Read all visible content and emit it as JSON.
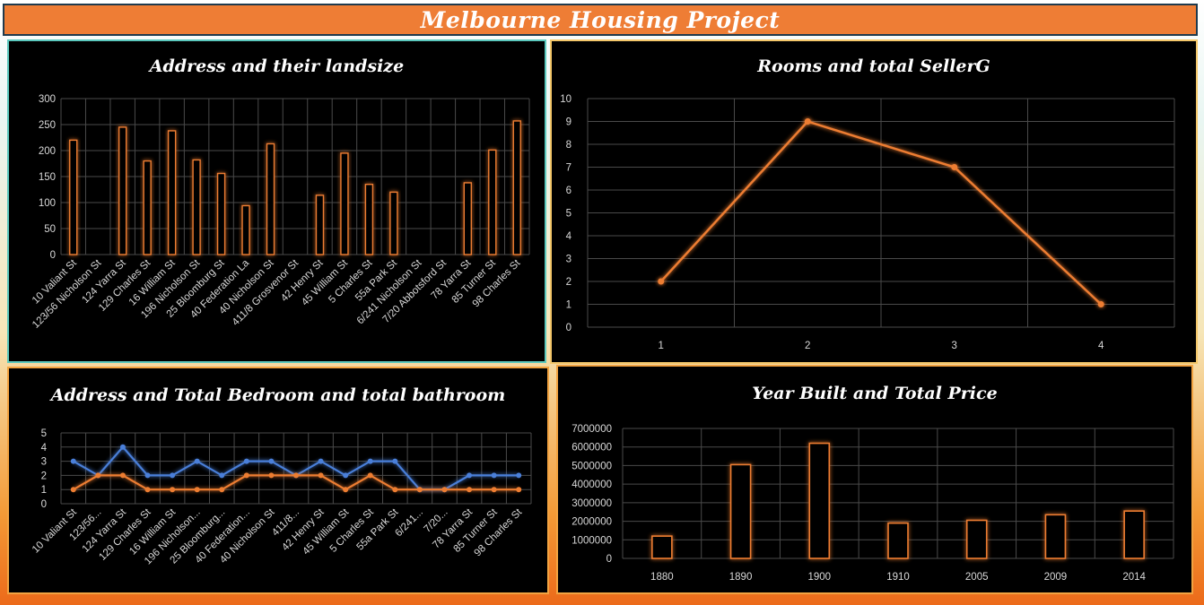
{
  "dashboard": {
    "title": "Melbourne Housing Project"
  },
  "chart_data": [
    {
      "id": "landsize",
      "type": "bar",
      "title": "Address and their landsize",
      "categories": [
        "10 Valiant St",
        "123/56 Nicholson St",
        "124 Yarra St",
        "129 Charles St",
        "16 William St",
        "196 Nicholson St",
        "25 Bloomburg St",
        "40 Federation La",
        "40 Nicholson St",
        "411/8 Grosvenor St",
        "42 Henry St",
        "45 William St",
        "5 Charles St",
        "55a Park St",
        "6/241 Nicholson St",
        "7/20 Abbotsford St",
        "78 Yarra St",
        "85 Turner St",
        "98 Charles St"
      ],
      "values": [
        220,
        0,
        245,
        180,
        238,
        182,
        156,
        94,
        213,
        0,
        114,
        195,
        135,
        120,
        0,
        0,
        138,
        201,
        257
      ],
      "ylim": [
        0,
        300
      ],
      "yticks": [
        0,
        50,
        100,
        150,
        200,
        250,
        300
      ],
      "grid": true,
      "color": "#ed7d31"
    },
    {
      "id": "rooms",
      "type": "line",
      "title": "Rooms and total SellerG",
      "x": [
        1,
        2,
        3,
        4
      ],
      "values": [
        2,
        9,
        7,
        1
      ],
      "ylim": [
        0,
        10
      ],
      "yticks": [
        0,
        1,
        2,
        3,
        4,
        5,
        6,
        7,
        8,
        9,
        10
      ],
      "grid": true,
      "color": "#ed7d31"
    },
    {
      "id": "bed_bath",
      "type": "line",
      "title": "Address and Total Bedroom and total bathroom",
      "categories": [
        "10 Valiant St",
        "123/56...",
        "124 Yarra St",
        "129 Charles St",
        "16 William St",
        "196 Nicholson...",
        "25 Bloomburg...",
        "40 Federation...",
        "40 Nicholson St",
        "411/8...",
        "42 Henry St",
        "45 William St",
        "5 Charles St",
        "55a Park St",
        "6/241...",
        "7/20...",
        "78 Yarra St",
        "85 Turner St",
        "98 Charles St"
      ],
      "series": [
        {
          "values": [
            3,
            2,
            4,
            2,
            2,
            3,
            2,
            3,
            3,
            2,
            3,
            2,
            3,
            3,
            1,
            1,
            2,
            2,
            2
          ],
          "color": "#4a7fd9"
        },
        {
          "values": [
            1,
            2,
            2,
            1,
            1,
            1,
            1,
            2,
            2,
            2,
            2,
            1,
            2,
            1,
            1,
            1,
            1,
            1,
            1
          ],
          "color": "#ed7d31"
        }
      ],
      "ylim": [
        0,
        5
      ],
      "yticks": [
        0,
        1,
        2,
        3,
        4,
        5
      ],
      "grid": true
    },
    {
      "id": "year_price",
      "type": "bar",
      "title": "Year Built and Total Price",
      "categories": [
        "1880",
        "1890",
        "1900",
        "1910",
        "2005",
        "2009",
        "2014"
      ],
      "values": [
        1200000,
        5050000,
        6200000,
        1900000,
        2050000,
        2350000,
        2550000
      ],
      "ylim": [
        0,
        7000000
      ],
      "yticks": [
        0,
        1000000,
        2000000,
        3000000,
        4000000,
        5000000,
        6000000,
        7000000
      ],
      "grid": true,
      "color": "#ed7d31"
    }
  ]
}
